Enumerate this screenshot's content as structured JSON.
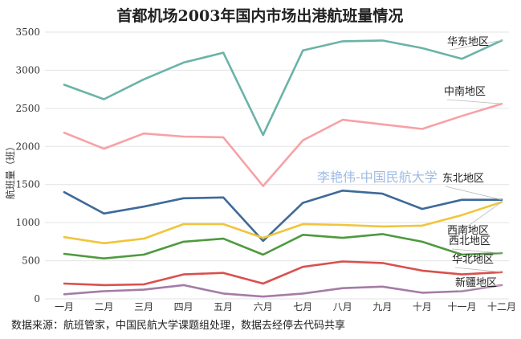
{
  "chart_data": {
    "type": "line",
    "title": "首都机场2003年国内市场出港航班量情况",
    "ylabel": "航班量（班）",
    "xlabel": "",
    "categories": [
      "一月",
      "二月",
      "三月",
      "四月",
      "五月",
      "六月",
      "七月",
      "八月",
      "九月",
      "十月",
      "十一月",
      "十二月"
    ],
    "ylim": [
      0,
      3500
    ],
    "yticks": [
      0,
      500,
      1000,
      1500,
      2000,
      2500,
      3000,
      3500
    ],
    "grid": true,
    "series": [
      {
        "name": "华东地区",
        "color": "#6bb3a8",
        "values": [
          2810,
          2620,
          2880,
          3100,
          3230,
          2150,
          3260,
          3380,
          3390,
          3290,
          3150,
          3390
        ]
      },
      {
        "name": "中南地区",
        "color": "#f7a1a6",
        "values": [
          2180,
          1970,
          2170,
          2130,
          2120,
          1480,
          2080,
          2350,
          2290,
          2230,
          2400,
          2560
        ]
      },
      {
        "name": "东北地区",
        "color": "#3e6a99",
        "values": [
          1400,
          1120,
          1210,
          1320,
          1330,
          760,
          1260,
          1420,
          1380,
          1180,
          1300,
          1300
        ]
      },
      {
        "name": "西南地区",
        "color": "#f0c53c",
        "values": [
          810,
          730,
          790,
          980,
          980,
          800,
          980,
          970,
          950,
          960,
          1100,
          1270
        ]
      },
      {
        "name": "西北地区",
        "color": "#4e9a3e",
        "values": [
          590,
          530,
          580,
          750,
          790,
          580,
          840,
          800,
          850,
          750,
          580,
          600
        ]
      },
      {
        "name": "华北地区",
        "color": "#d9504e",
        "values": [
          200,
          180,
          190,
          320,
          340,
          200,
          420,
          490,
          470,
          370,
          320,
          350
        ]
      },
      {
        "name": "新疆地区",
        "color": "#a47ca6",
        "values": [
          60,
          100,
          120,
          180,
          70,
          30,
          70,
          140,
          160,
          80,
          100,
          180
        ]
      }
    ],
    "watermark": "李艳伟-中国民航大学",
    "source": "数据来源：航班管家，中国民航大学课题组处理，数据去经停去代码共享"
  }
}
